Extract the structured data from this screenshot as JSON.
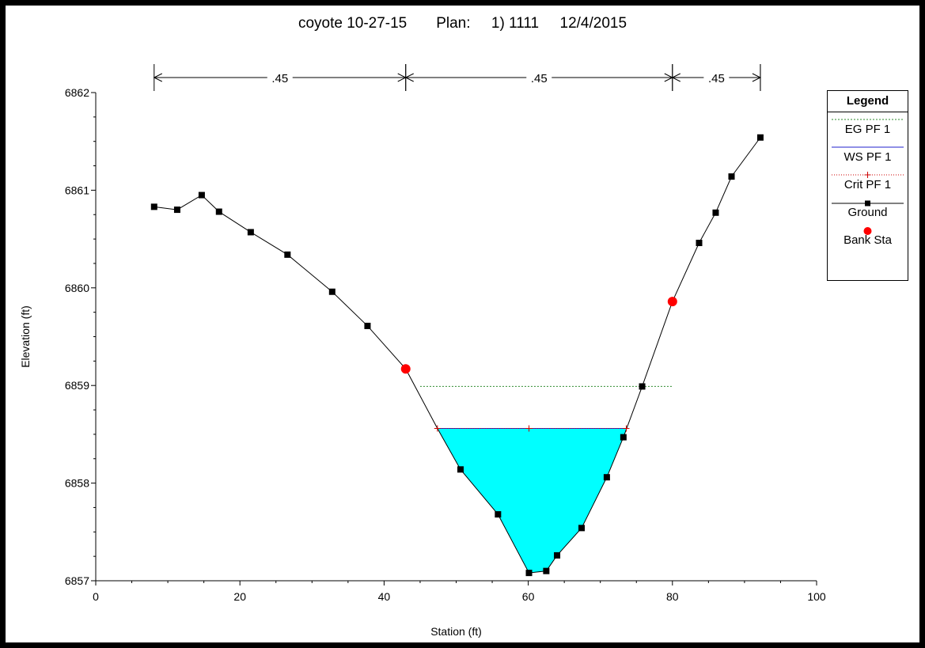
{
  "title": "coyote 10-27-15       Plan:     1) 1111     12/4/2015",
  "colors": {
    "eg": "#2e8b2e",
    "ws": "#2222cc",
    "crit": "#cc0000",
    "ground": "#000000",
    "bank": "#ff0000",
    "water_fill": "#00ffff"
  },
  "legend": {
    "title": "Legend",
    "items": [
      {
        "label": "EG PF 1",
        "symbol": "dashed-green-line"
      },
      {
        "label": "WS PF 1",
        "symbol": "blue-line"
      },
      {
        "label": "Crit PF 1",
        "symbol": "red-dotted-plus"
      },
      {
        "label": "Ground",
        "symbol": "black-line-square"
      },
      {
        "label": "Bank Sta",
        "symbol": "red-dot"
      }
    ]
  },
  "chart_data": {
    "type": "line",
    "title": "coyote 10-27-15       Plan:     1) 1111     12/4/2015",
    "xlabel": "Station (ft)",
    "ylabel": "Elevation (ft)",
    "xlim": [
      0,
      100
    ],
    "ylim": [
      6857,
      6862
    ],
    "x_ticks": [
      0,
      20,
      40,
      60,
      80,
      100
    ],
    "y_ticks": [
      6857,
      6858,
      6859,
      6860,
      6861,
      6862
    ],
    "grid": false,
    "legend_position": "right",
    "ground": {
      "name": "Ground",
      "x": [
        8.1,
        11.3,
        14.7,
        17.1,
        21.5,
        26.6,
        32.8,
        37.7,
        43.0,
        47.4,
        50.6,
        55.8,
        60.1,
        62.5,
        64.0,
        67.4,
        70.9,
        73.2,
        75.8,
        80.0,
        83.7,
        86.0,
        88.2,
        92.2
      ],
      "y": [
        6860.83,
        6860.8,
        6860.95,
        6860.78,
        6860.57,
        6860.34,
        6859.96,
        6859.61,
        6859.17,
        6858.56,
        6858.14,
        6857.68,
        6857.08,
        6857.1,
        6857.26,
        6857.54,
        6858.06,
        6858.47,
        6858.99,
        6859.86,
        6860.46,
        6860.77,
        6861.14,
        6861.54
      ],
      "markers": [
        8.1,
        11.3,
        14.7,
        17.1,
        21.5,
        26.6,
        32.8,
        37.7,
        50.6,
        55.8,
        60.1,
        62.5,
        64.0,
        67.4,
        70.9,
        73.2,
        75.8,
        83.7,
        86.0,
        88.2,
        92.2
      ]
    },
    "bank_stations": [
      {
        "name": "Bank Sta",
        "x": 43.0,
        "y": 6859.17
      },
      {
        "name": "Bank Sta",
        "x": 80.0,
        "y": 6859.86
      }
    ],
    "eg": {
      "name": "EG PF 1",
      "elevation": 6858.99,
      "x_range": [
        45.0,
        80.0
      ]
    },
    "ws": {
      "name": "WS PF 1",
      "elevation": 6858.56,
      "x_range": [
        47.4,
        73.6
      ]
    },
    "crit": {
      "name": "Crit PF 1",
      "elevation": 6858.56,
      "plus_x": [
        47.4,
        60.1,
        73.6
      ]
    },
    "mannings_n": [
      {
        "label": ".45",
        "x_start": 8.1,
        "x_end": 43.0
      },
      {
        "label": ".45",
        "x_start": 43.0,
        "x_end": 80.0
      },
      {
        "label": ".45",
        "x_start": 80.0,
        "x_end": 92.2
      }
    ]
  }
}
